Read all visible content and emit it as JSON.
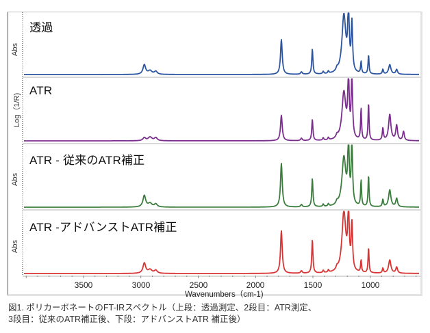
{
  "figure": {
    "caption_line1": "図1. ポリカーボネートのFT-IRスペクトル（上段：透過測定、2段目：ATR測定、",
    "caption_line2": "3段目：従来のATR補正後、下段：アドバンストATR 補正後）"
  },
  "chart_data": {
    "type": "line",
    "title": "図1. ポリカーボネートのFT-IRスペクトル",
    "xlabel": "Wavenumbers（cm-1)",
    "x_ticks": [
      3500,
      3000,
      2500,
      2000,
      1500,
      1000
    ],
    "xlim": [
      4020,
      570
    ],
    "x_reversed": true,
    "grid": false,
    "layout": "4 stacked panels sharing x-axis",
    "panels": [
      {
        "name": "透過",
        "ylabel": "Abs",
        "color": "#2b55a0",
        "peaks": [
          {
            "wavenumber": 2970,
            "rel_height": 0.16
          },
          {
            "wavenumber": 1775,
            "rel_height": 0.58
          },
          {
            "wavenumber": 1505,
            "rel_height": 0.42
          },
          {
            "wavenumber": 1230,
            "rel_height": 0.97
          },
          {
            "wavenumber": 1190,
            "rel_height": 1.0
          },
          {
            "wavenumber": 1160,
            "rel_height": 0.8
          },
          {
            "wavenumber": 1080,
            "rel_height": 0.2
          },
          {
            "wavenumber": 1015,
            "rel_height": 0.32
          },
          {
            "wavenumber": 890,
            "rel_height": 0.08
          },
          {
            "wavenumber": 830,
            "rel_height": 0.16
          },
          {
            "wavenumber": 770,
            "rel_height": 0.08
          }
        ]
      },
      {
        "name": "ATR",
        "ylabel": "Log（1/R)",
        "color": "#7b2e8e",
        "peaks": [
          {
            "wavenumber": 2970,
            "rel_height": 0.05
          },
          {
            "wavenumber": 1775,
            "rel_height": 0.42
          },
          {
            "wavenumber": 1505,
            "rel_height": 0.35
          },
          {
            "wavenumber": 1230,
            "rel_height": 0.78
          },
          {
            "wavenumber": 1190,
            "rel_height": 0.95
          },
          {
            "wavenumber": 1160,
            "rel_height": 1.0
          },
          {
            "wavenumber": 1080,
            "rel_height": 0.52
          },
          {
            "wavenumber": 1015,
            "rel_height": 0.62
          },
          {
            "wavenumber": 890,
            "rel_height": 0.2
          },
          {
            "wavenumber": 830,
            "rel_height": 0.43
          },
          {
            "wavenumber": 770,
            "rel_height": 0.25
          },
          {
            "wavenumber": 710,
            "rel_height": 0.15
          }
        ]
      },
      {
        "name": "ATR - 従来のATR補正",
        "ylabel": "Abs",
        "color": "#3a7d3d",
        "peaks": [
          {
            "wavenumber": 2970,
            "rel_height": 0.19
          },
          {
            "wavenumber": 1775,
            "rel_height": 0.72
          },
          {
            "wavenumber": 1505,
            "rel_height": 0.47
          },
          {
            "wavenumber": 1230,
            "rel_height": 0.8
          },
          {
            "wavenumber": 1190,
            "rel_height": 0.97
          },
          {
            "wavenumber": 1160,
            "rel_height": 1.0
          },
          {
            "wavenumber": 1080,
            "rel_height": 0.43
          },
          {
            "wavenumber": 1015,
            "rel_height": 0.52
          },
          {
            "wavenumber": 890,
            "rel_height": 0.12
          },
          {
            "wavenumber": 830,
            "rel_height": 0.28
          },
          {
            "wavenumber": 770,
            "rel_height": 0.14
          }
        ]
      },
      {
        "name": "ATR -アドバンストATR補正",
        "ylabel": "Abs",
        "color": "#d93434",
        "peaks": [
          {
            "wavenumber": 2970,
            "rel_height": 0.17
          },
          {
            "wavenumber": 1775,
            "rel_height": 0.7
          },
          {
            "wavenumber": 1505,
            "rel_height": 0.55
          },
          {
            "wavenumber": 1230,
            "rel_height": 1.0
          },
          {
            "wavenumber": 1190,
            "rel_height": 0.95
          },
          {
            "wavenumber": 1160,
            "rel_height": 0.75
          },
          {
            "wavenumber": 1080,
            "rel_height": 0.2
          },
          {
            "wavenumber": 1015,
            "rel_height": 0.42
          },
          {
            "wavenumber": 890,
            "rel_height": 0.08
          },
          {
            "wavenumber": 830,
            "rel_height": 0.22
          },
          {
            "wavenumber": 770,
            "rel_height": 0.1
          }
        ]
      }
    ]
  }
}
